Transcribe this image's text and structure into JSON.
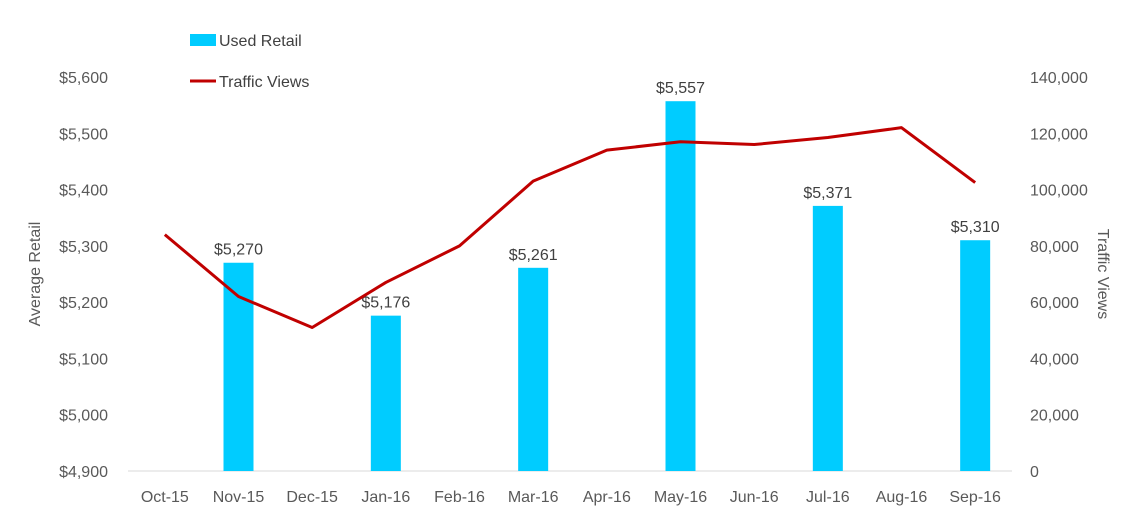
{
  "chart_data": {
    "type": "bar",
    "categories": [
      "Oct-15",
      "Nov-15",
      "Dec-15",
      "Jan-16",
      "Feb-16",
      "Mar-16",
      "Apr-16",
      "May-16",
      "Jun-16",
      "Jul-16",
      "Aug-16",
      "Sep-16"
    ],
    "series": [
      {
        "name": "Used Retail",
        "type": "bar",
        "axis": "left",
        "color": "#00CCFF",
        "values": [
          null,
          5270,
          null,
          5176,
          null,
          5261,
          null,
          5557,
          null,
          5371,
          null,
          5310
        ],
        "labels": [
          null,
          "$5,270",
          null,
          "$5,176",
          null,
          "$5,261",
          null,
          "$5,557",
          null,
          "$5,371",
          null,
          "$5,310"
        ]
      },
      {
        "name": "Traffic Views",
        "type": "line",
        "axis": "right",
        "color": "#C00000",
        "values": [
          84000,
          62000,
          51000,
          67000,
          80000,
          103000,
          114000,
          117000,
          116000,
          118500,
          122000,
          102500
        ]
      }
    ],
    "ylabel": "Average Retail",
    "y2label": "Traffic Views",
    "ylim": [
      4900,
      5600
    ],
    "y2lim": [
      0,
      140000
    ],
    "yticks": [
      "$4,900",
      "$5,000",
      "$5,100",
      "$5,200",
      "$5,300",
      "$5,400",
      "$5,500",
      "$5,600"
    ],
    "y2ticks": [
      "0",
      "20,000",
      "40,000",
      "60,000",
      "80,000",
      "100,000",
      "120,000",
      "140,000"
    ],
    "grid": false,
    "legend": "top-left"
  }
}
